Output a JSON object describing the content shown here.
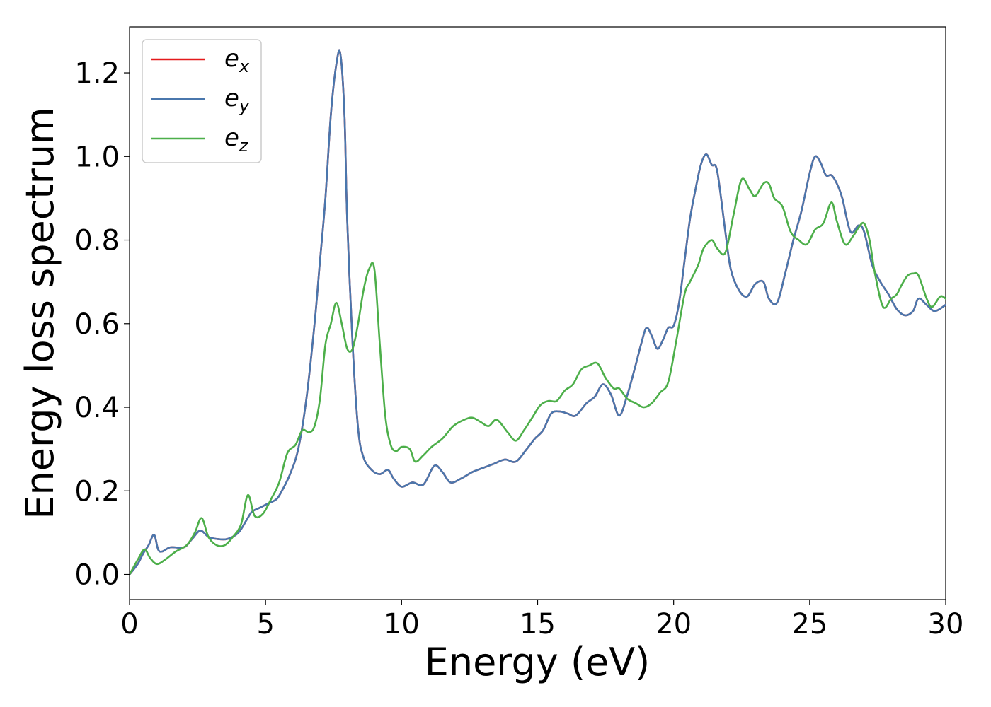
{
  "chart_data": {
    "type": "line",
    "xlabel": "Energy (eV)",
    "ylabel": "Energy loss spectrum",
    "xlim": [
      0,
      30
    ],
    "ylim": [
      -0.06,
      1.31
    ],
    "xticks": [
      0,
      5,
      10,
      15,
      20,
      25,
      30
    ],
    "xtick_labels": [
      "0",
      "5",
      "10",
      "15",
      "20",
      "25",
      "30"
    ],
    "yticks": [
      0.0,
      0.2,
      0.4,
      0.6,
      0.8,
      1.0,
      1.2
    ],
    "ytick_labels": [
      "0.0",
      "0.2",
      "0.4",
      "0.6",
      "0.8",
      "1.0",
      "1.2"
    ],
    "grid": false,
    "legend_position": "top-left",
    "series": [
      {
        "name": "e_x",
        "legend_base": "e",
        "legend_sub": "x",
        "color": "#e41a1c",
        "x": [
          0,
          0.3,
          0.5,
          0.7,
          0.9,
          1.05,
          1.2,
          1.5,
          2.0,
          2.3,
          2.6,
          2.9,
          3.2,
          3.6,
          4.0,
          4.3,
          4.5,
          4.8,
          5.1,
          5.4,
          5.6,
          5.9,
          6.2,
          6.5,
          6.8,
          7.0,
          7.2,
          7.4,
          7.6,
          7.75,
          7.9,
          8.0,
          8.2,
          8.4,
          8.6,
          8.9,
          9.2,
          9.5,
          9.7,
          10.0,
          10.4,
          10.8,
          11.2,
          11.5,
          11.8,
          12.2,
          12.6,
          13.0,
          13.4,
          13.8,
          14.2,
          14.6,
          14.9,
          15.2,
          15.5,
          15.8,
          16.1,
          16.4,
          16.8,
          17.1,
          17.4,
          17.7,
          18.0,
          18.3,
          18.6,
          18.8,
          19.0,
          19.2,
          19.4,
          19.6,
          19.8,
          20.0,
          20.2,
          20.4,
          20.6,
          20.8,
          21.0,
          21.2,
          21.4,
          21.6,
          21.9,
          22.1,
          22.4,
          22.7,
          23.0,
          23.3,
          23.5,
          23.8,
          24.1,
          24.4,
          24.7,
          25.0,
          25.2,
          25.4,
          25.6,
          25.8,
          26.0,
          26.2,
          26.5,
          26.8,
          27.0,
          27.3,
          27.6,
          27.9,
          28.2,
          28.5,
          28.8,
          29.0,
          29.3,
          29.6,
          30.0
        ],
        "y": [
          0.0,
          0.025,
          0.05,
          0.07,
          0.095,
          0.06,
          0.055,
          0.065,
          0.065,
          0.085,
          0.105,
          0.09,
          0.085,
          0.085,
          0.1,
          0.13,
          0.15,
          0.16,
          0.17,
          0.18,
          0.2,
          0.24,
          0.3,
          0.42,
          0.6,
          0.75,
          0.9,
          1.1,
          1.22,
          1.245,
          1.1,
          0.85,
          0.55,
          0.35,
          0.28,
          0.25,
          0.24,
          0.25,
          0.23,
          0.21,
          0.22,
          0.215,
          0.26,
          0.245,
          0.22,
          0.23,
          0.245,
          0.255,
          0.265,
          0.275,
          0.27,
          0.3,
          0.325,
          0.345,
          0.385,
          0.39,
          0.385,
          0.38,
          0.41,
          0.425,
          0.455,
          0.43,
          0.38,
          0.43,
          0.5,
          0.55,
          0.59,
          0.57,
          0.54,
          0.56,
          0.59,
          0.595,
          0.65,
          0.75,
          0.85,
          0.92,
          0.98,
          1.005,
          0.98,
          0.965,
          0.82,
          0.73,
          0.68,
          0.665,
          0.695,
          0.7,
          0.66,
          0.65,
          0.72,
          0.8,
          0.87,
          0.96,
          1.0,
          0.985,
          0.955,
          0.955,
          0.935,
          0.9,
          0.82,
          0.835,
          0.82,
          0.74,
          0.7,
          0.67,
          0.635,
          0.62,
          0.63,
          0.66,
          0.645,
          0.63,
          0.645
        ]
      },
      {
        "name": "e_y",
        "legend_base": "e",
        "legend_sub": "y",
        "color": "#4a77ad",
        "x": [
          0,
          0.3,
          0.5,
          0.7,
          0.9,
          1.05,
          1.2,
          1.5,
          2.0,
          2.3,
          2.6,
          2.9,
          3.2,
          3.6,
          4.0,
          4.3,
          4.5,
          4.8,
          5.1,
          5.4,
          5.6,
          5.9,
          6.2,
          6.5,
          6.8,
          7.0,
          7.2,
          7.4,
          7.6,
          7.75,
          7.9,
          8.0,
          8.2,
          8.4,
          8.6,
          8.9,
          9.2,
          9.5,
          9.7,
          10.0,
          10.4,
          10.8,
          11.2,
          11.5,
          11.8,
          12.2,
          12.6,
          13.0,
          13.4,
          13.8,
          14.2,
          14.6,
          14.9,
          15.2,
          15.5,
          15.8,
          16.1,
          16.4,
          16.8,
          17.1,
          17.4,
          17.7,
          18.0,
          18.3,
          18.6,
          18.8,
          19.0,
          19.2,
          19.4,
          19.6,
          19.8,
          20.0,
          20.2,
          20.4,
          20.6,
          20.8,
          21.0,
          21.2,
          21.4,
          21.6,
          21.9,
          22.1,
          22.4,
          22.7,
          23.0,
          23.3,
          23.5,
          23.8,
          24.1,
          24.4,
          24.7,
          25.0,
          25.2,
          25.4,
          25.6,
          25.8,
          26.0,
          26.2,
          26.5,
          26.8,
          27.0,
          27.3,
          27.6,
          27.9,
          28.2,
          28.5,
          28.8,
          29.0,
          29.3,
          29.6,
          30.0
        ],
        "y": [
          0.0,
          0.025,
          0.05,
          0.07,
          0.095,
          0.06,
          0.055,
          0.065,
          0.065,
          0.085,
          0.105,
          0.09,
          0.085,
          0.085,
          0.1,
          0.13,
          0.15,
          0.16,
          0.17,
          0.18,
          0.2,
          0.24,
          0.3,
          0.42,
          0.6,
          0.75,
          0.9,
          1.1,
          1.22,
          1.245,
          1.1,
          0.85,
          0.55,
          0.35,
          0.28,
          0.25,
          0.24,
          0.25,
          0.23,
          0.21,
          0.22,
          0.215,
          0.26,
          0.245,
          0.22,
          0.23,
          0.245,
          0.255,
          0.265,
          0.275,
          0.27,
          0.3,
          0.325,
          0.345,
          0.385,
          0.39,
          0.385,
          0.38,
          0.41,
          0.425,
          0.455,
          0.43,
          0.38,
          0.43,
          0.5,
          0.55,
          0.59,
          0.57,
          0.54,
          0.56,
          0.59,
          0.595,
          0.65,
          0.75,
          0.85,
          0.92,
          0.98,
          1.005,
          0.98,
          0.965,
          0.82,
          0.73,
          0.68,
          0.665,
          0.695,
          0.7,
          0.66,
          0.65,
          0.72,
          0.8,
          0.87,
          0.96,
          1.0,
          0.985,
          0.955,
          0.955,
          0.935,
          0.9,
          0.82,
          0.835,
          0.82,
          0.74,
          0.7,
          0.67,
          0.635,
          0.62,
          0.63,
          0.66,
          0.645,
          0.63,
          0.645
        ]
      },
      {
        "name": "e_z",
        "legend_base": "e",
        "legend_sub": "z",
        "color": "#4daf4a",
        "x": [
          0,
          0.3,
          0.55,
          0.75,
          1.0,
          1.3,
          1.7,
          2.1,
          2.4,
          2.65,
          2.9,
          3.2,
          3.5,
          3.8,
          4.1,
          4.35,
          4.6,
          4.9,
          5.2,
          5.5,
          5.8,
          6.1,
          6.35,
          6.6,
          6.8,
          7.0,
          7.2,
          7.4,
          7.6,
          7.8,
          8.0,
          8.2,
          8.4,
          8.6,
          8.8,
          9.0,
          9.2,
          9.4,
          9.6,
          9.8,
          10.0,
          10.3,
          10.5,
          10.8,
          11.1,
          11.5,
          11.9,
          12.3,
          12.6,
          12.9,
          13.2,
          13.5,
          13.9,
          14.2,
          14.5,
          14.8,
          15.1,
          15.4,
          15.7,
          16.0,
          16.3,
          16.6,
          16.9,
          17.2,
          17.5,
          17.8,
          18.0,
          18.3,
          18.6,
          18.9,
          19.2,
          19.5,
          19.8,
          20.1,
          20.4,
          20.6,
          20.9,
          21.1,
          21.4,
          21.6,
          21.9,
          22.2,
          22.5,
          22.8,
          23.0,
          23.3,
          23.5,
          23.7,
          24.0,
          24.3,
          24.6,
          24.9,
          25.2,
          25.5,
          25.8,
          26.0,
          26.3,
          26.6,
          26.8,
          27.0,
          27.2,
          27.4,
          27.7,
          28.0,
          28.2,
          28.4,
          28.6,
          28.8,
          29.0,
          29.3,
          29.5,
          29.8,
          30.0
        ],
        "y": [
          0.0,
          0.035,
          0.06,
          0.04,
          0.025,
          0.035,
          0.055,
          0.07,
          0.1,
          0.135,
          0.09,
          0.07,
          0.07,
          0.09,
          0.12,
          0.19,
          0.14,
          0.145,
          0.18,
          0.22,
          0.29,
          0.31,
          0.345,
          0.34,
          0.355,
          0.42,
          0.55,
          0.6,
          0.65,
          0.6,
          0.54,
          0.54,
          0.6,
          0.68,
          0.73,
          0.73,
          0.55,
          0.38,
          0.31,
          0.295,
          0.305,
          0.3,
          0.27,
          0.285,
          0.305,
          0.325,
          0.355,
          0.37,
          0.375,
          0.365,
          0.355,
          0.37,
          0.34,
          0.32,
          0.345,
          0.375,
          0.405,
          0.415,
          0.415,
          0.44,
          0.455,
          0.49,
          0.5,
          0.505,
          0.47,
          0.445,
          0.445,
          0.42,
          0.41,
          0.4,
          0.41,
          0.435,
          0.46,
          0.56,
          0.67,
          0.7,
          0.74,
          0.78,
          0.8,
          0.78,
          0.77,
          0.86,
          0.945,
          0.92,
          0.905,
          0.935,
          0.935,
          0.9,
          0.88,
          0.82,
          0.8,
          0.79,
          0.825,
          0.84,
          0.89,
          0.845,
          0.79,
          0.81,
          0.83,
          0.84,
          0.8,
          0.72,
          0.64,
          0.66,
          0.67,
          0.695,
          0.715,
          0.72,
          0.715,
          0.66,
          0.64,
          0.665,
          0.66
        ]
      }
    ]
  }
}
